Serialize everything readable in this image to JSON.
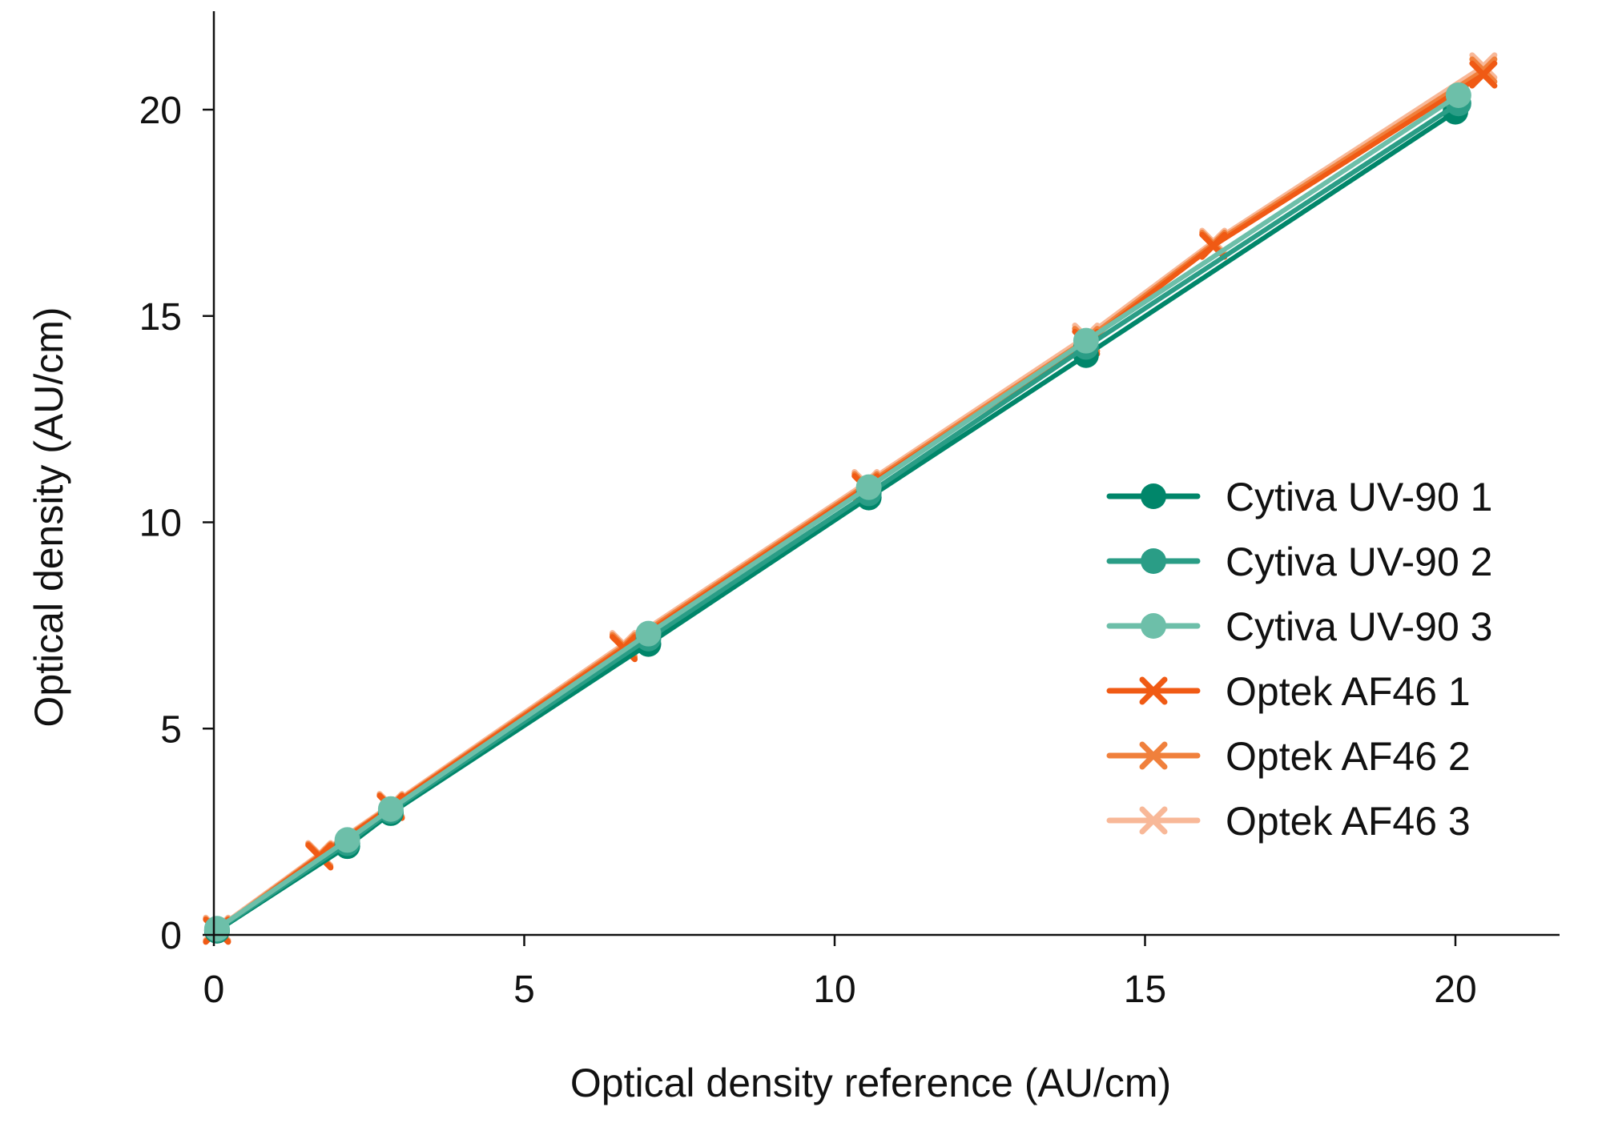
{
  "chart_data": {
    "type": "line",
    "title": "",
    "xlabel": "Optical density reference (AU/cm)",
    "ylabel": "Optical density (AU/cm)",
    "xlim": [
      0,
      21.7
    ],
    "ylim": [
      0,
      22.4
    ],
    "xticks": [
      0,
      5,
      10,
      15,
      20
    ],
    "yticks": [
      0,
      5,
      10,
      15,
      20
    ],
    "xtick_labels": [
      "0",
      "5",
      "10",
      "15",
      "20"
    ],
    "ytick_labels": [
      "0",
      "5",
      "10",
      "15",
      "20"
    ],
    "grid": false,
    "legend": "right",
    "series": [
      {
        "name": "Cytiva UV-90 1",
        "color": "#00866a",
        "marker": "circle",
        "x": [
          0.05,
          2.15,
          2.85,
          7.0,
          10.55,
          14.05,
          20.0
        ],
        "y": [
          0.1,
          2.15,
          2.95,
          7.05,
          10.6,
          14.05,
          19.95
        ]
      },
      {
        "name": "Cytiva UV-90 2",
        "color": "#2a9d86",
        "marker": "circle",
        "x": [
          0.05,
          2.15,
          2.85,
          7.0,
          10.55,
          14.05,
          20.05
        ],
        "y": [
          0.12,
          2.22,
          3.0,
          7.18,
          10.7,
          14.25,
          20.15
        ]
      },
      {
        "name": "Cytiva UV-90 3",
        "color": "#6dbfa9",
        "marker": "circle",
        "x": [
          0.05,
          2.15,
          2.85,
          7.0,
          10.55,
          14.05,
          20.05
        ],
        "y": [
          0.15,
          2.3,
          3.05,
          7.3,
          10.85,
          14.4,
          20.35
        ]
      },
      {
        "name": "Optek AF46 1",
        "color": "#f05a14",
        "marker": "x",
        "x": [
          0.05,
          1.7,
          2.85,
          6.6,
          10.5,
          14.05,
          16.1,
          20.45
        ],
        "y": [
          0.1,
          1.9,
          3.1,
          6.95,
          10.85,
          14.35,
          16.7,
          20.85
        ]
      },
      {
        "name": "Optek AF46 2",
        "color": "#f0803c",
        "marker": "x",
        "x": [
          0.05,
          1.7,
          2.85,
          6.6,
          10.5,
          14.05,
          16.1,
          20.45
        ],
        "y": [
          0.12,
          1.93,
          3.12,
          7.0,
          10.9,
          14.42,
          16.75,
          20.95
        ]
      },
      {
        "name": "Optek AF46 3",
        "color": "#f8b898",
        "marker": "x",
        "x": [
          0.05,
          1.7,
          2.85,
          6.6,
          10.5,
          14.05,
          16.1,
          20.45
        ],
        "y": [
          0.15,
          1.96,
          3.15,
          7.05,
          10.95,
          14.5,
          16.8,
          21.05
        ]
      }
    ]
  }
}
